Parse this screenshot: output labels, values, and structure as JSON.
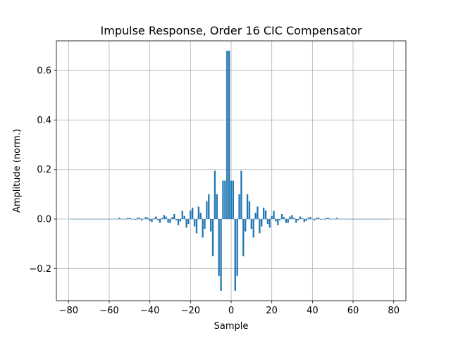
{
  "chart_data": {
    "type": "bar",
    "title": "Impulse Response, Order 16 CIC Compensator",
    "xlabel": "Sample",
    "ylabel": "Amplitude (norm.)",
    "xlim": [
      -86,
      86
    ],
    "ylim": [
      -0.33,
      0.72
    ],
    "xticks": [
      -80,
      -60,
      -40,
      -20,
      0,
      20,
      40,
      60,
      80
    ],
    "xtick_labels": [
      "−80",
      "−60",
      "−40",
      "−20",
      "0",
      "20",
      "40",
      "60",
      "80"
    ],
    "yticks": [
      -0.2,
      0.0,
      0.2,
      0.4,
      0.6
    ],
    "ytick_labels": [
      "−0.2",
      "0.0",
      "0.2",
      "0.4",
      "0.6"
    ],
    "grid": true,
    "bar_color": "#1f77b4",
    "x_start": -79,
    "values": [
      0.001,
      -0.001,
      0.001,
      -0.001,
      0.001,
      -0.001,
      0.001,
      -0.001,
      0.001,
      -0.001,
      0.001,
      -0.001,
      0.001,
      -0.001,
      0.001,
      -0.001,
      0.001,
      -0.001,
      0.001,
      -0.001,
      0.001,
      -0.001,
      0.001,
      -0.001,
      0.005,
      -0.002,
      0.001,
      -0.002,
      0.004,
      0.005,
      -0.002,
      0.001,
      -0.003,
      0.006,
      0.005,
      -0.006,
      0.001,
      0.008,
      0.005,
      -0.008,
      -0.012,
      0.003,
      0.01,
      -0.005,
      -0.015,
      0.004,
      0.016,
      0.01,
      -0.015,
      -0.016,
      0.008,
      0.02,
      -0.005,
      -0.025,
      -0.01,
      0.033,
      0.012,
      -0.035,
      -0.02,
      0.035,
      0.046,
      -0.03,
      -0.058,
      0.05,
      0.025,
      -0.075,
      -0.04,
      0.072,
      0.1,
      -0.05,
      -0.15,
      0.195,
      0.1,
      -0.23,
      -0.29,
      0.155,
      0.155,
      0.68,
      0.68,
      0.155,
      0.155,
      -0.29,
      -0.23,
      0.1,
      0.195,
      -0.15,
      -0.05,
      0.1,
      0.072,
      -0.04,
      -0.075,
      0.025,
      0.05,
      -0.058,
      -0.03,
      0.046,
      0.035,
      -0.02,
      -0.035,
      0.012,
      0.033,
      -0.01,
      -0.025,
      -0.005,
      0.02,
      0.008,
      -0.016,
      -0.015,
      0.01,
      0.016,
      0.004,
      -0.015,
      -0.005,
      0.01,
      0.003,
      -0.012,
      -0.008,
      0.005,
      0.008,
      0.001,
      -0.006,
      0.005,
      0.006,
      -0.003,
      0.001,
      -0.002,
      0.005,
      0.004,
      -0.002,
      0.001,
      -0.002,
      0.005,
      0.001,
      -0.001,
      0.001,
      -0.001,
      0.001,
      -0.001,
      0.001,
      -0.001,
      0.001,
      -0.001,
      0.001,
      -0.001,
      0.001,
      -0.001,
      0.001,
      -0.001,
      0.001,
      -0.001,
      0.001,
      -0.001,
      0.001,
      -0.001,
      0.001,
      -0.001,
      0.001,
      -0.001
    ]
  }
}
